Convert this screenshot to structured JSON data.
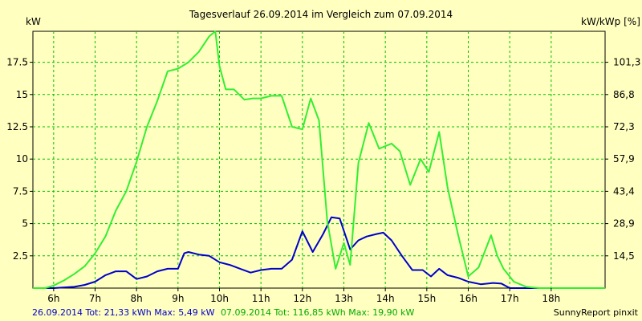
{
  "chart_data": {
    "type": "line",
    "title": "Tagesverlauf 26.09.2014 im Vergleich zum 07.09.2014",
    "ylabel_left": "kW",
    "ylabel_right": "kW/kWp [%]",
    "x_ticks": [
      "6h",
      "7h",
      "8h",
      "9h",
      "10h",
      "11h",
      "12h",
      "13h",
      "14h",
      "15h",
      "16h",
      "17h",
      "18h"
    ],
    "x_range": [
      5.5,
      19.3
    ],
    "y_ticks": [
      "2.5",
      "5",
      "7.5",
      "10",
      "12.5",
      "15",
      "17.5"
    ],
    "y_range": [
      0,
      19.9
    ],
    "y2_ticks": [
      "14,5",
      "28,9",
      "43,4",
      "57,9",
      "72,3",
      "86,8",
      "101,3"
    ],
    "grid": true,
    "colors": {
      "background": "#ffffc0",
      "grid": "#00c000",
      "series_blue": "#0000cc",
      "series_green": "#33ee33"
    },
    "series": [
      {
        "name": "26.09.2014",
        "color": "#0000cc",
        "x": [
          5.5,
          6.0,
          6.5,
          6.75,
          7.0,
          7.25,
          7.5,
          7.75,
          8.0,
          8.25,
          8.5,
          8.75,
          9.0,
          9.15,
          9.25,
          9.5,
          9.75,
          10.0,
          10.25,
          10.5,
          10.75,
          11.0,
          11.25,
          11.5,
          11.75,
          12.0,
          12.25,
          12.5,
          12.7,
          12.9,
          13.15,
          13.35,
          13.55,
          13.8,
          13.95,
          14.15,
          14.4,
          14.65,
          14.9,
          15.1,
          15.3,
          15.5,
          15.75,
          16.0,
          16.3,
          16.6,
          16.8,
          17.0,
          17.3,
          17.6,
          18.0,
          18.5,
          19.0,
          19.3
        ],
        "values": [
          0.0,
          0.0,
          0.1,
          0.25,
          0.5,
          1.0,
          1.3,
          1.3,
          0.7,
          0.9,
          1.3,
          1.5,
          1.5,
          2.7,
          2.8,
          2.6,
          2.5,
          2.0,
          1.8,
          1.5,
          1.2,
          1.4,
          1.5,
          1.5,
          2.2,
          4.4,
          2.8,
          4.2,
          5.49,
          5.4,
          3.0,
          3.7,
          4.0,
          4.2,
          4.3,
          3.7,
          2.5,
          1.4,
          1.4,
          0.9,
          1.5,
          1.0,
          0.8,
          0.5,
          0.3,
          0.4,
          0.35,
          0.0,
          0.0,
          0.0,
          0.0,
          0.0,
          0.0,
          0.0
        ]
      },
      {
        "name": "07.09.2014",
        "color": "#33ee33",
        "x": [
          5.5,
          5.8,
          6.0,
          6.25,
          6.5,
          6.75,
          7.0,
          7.25,
          7.5,
          7.75,
          8.0,
          8.25,
          8.5,
          8.75,
          9.0,
          9.25,
          9.5,
          9.75,
          9.9,
          10.0,
          10.15,
          10.35,
          10.6,
          10.8,
          11.0,
          11.25,
          11.5,
          11.75,
          12.0,
          12.2,
          12.4,
          12.6,
          12.8,
          13.0,
          13.15,
          13.35,
          13.6,
          13.85,
          14.15,
          14.35,
          14.6,
          14.85,
          15.05,
          15.3,
          15.5,
          15.75,
          16.0,
          16.25,
          16.55,
          16.7,
          16.85,
          17.1,
          17.4,
          17.7,
          18.0,
          18.5,
          19.0,
          19.3
        ],
        "values": [
          0.0,
          0.0,
          0.2,
          0.6,
          1.1,
          1.7,
          2.7,
          4.0,
          6.0,
          7.5,
          9.8,
          12.5,
          14.5,
          16.8,
          17.0,
          17.5,
          18.3,
          19.5,
          19.9,
          17.2,
          15.4,
          15.4,
          14.6,
          14.7,
          14.7,
          14.9,
          14.9,
          12.5,
          12.3,
          14.7,
          13.0,
          5.2,
          1.5,
          3.5,
          1.8,
          9.7,
          12.8,
          10.8,
          11.2,
          10.6,
          8.0,
          10.0,
          9.0,
          12.1,
          7.8,
          4.2,
          0.9,
          1.6,
          4.1,
          2.5,
          1.5,
          0.5,
          0.1,
          0.0,
          0.0,
          0.0,
          0.0,
          0.0
        ]
      }
    ],
    "footer": {
      "blue_text": "26.09.2014 Tot: 21,33 kWh Max: 5,49 kW",
      "green_text": "07.09.2014 Tot: 116,85 kWh Max: 19,90 kW",
      "credit": "SunnyReport pinxit"
    }
  }
}
